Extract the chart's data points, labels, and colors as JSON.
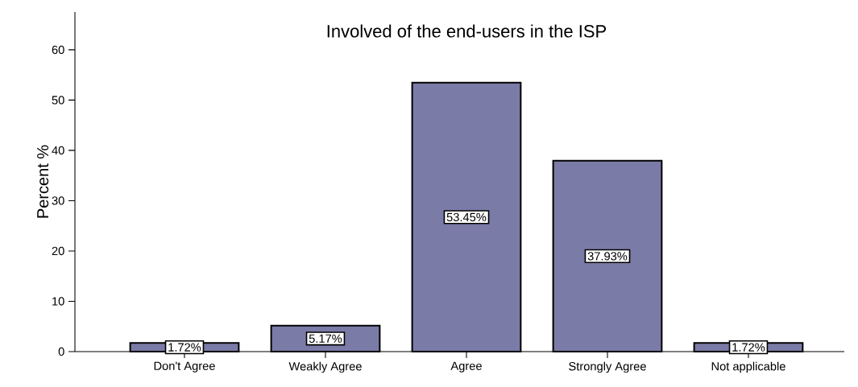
{
  "chart_data": {
    "type": "bar",
    "title": "Involved of the end-users in the ISP",
    "ylabel": "Percent %",
    "categories": [
      "Don't Agree",
      "Weakly Agree",
      "Agree",
      "Strongly Agree",
      "Not applicable"
    ],
    "values": [
      1.72,
      5.17,
      53.45,
      37.93,
      1.72
    ],
    "value_labels": [
      "1.72%",
      "5.17%",
      "53.45%",
      "37.93%",
      "1.72%"
    ],
    "color": "#7b7ba8",
    "ylim": [
      0,
      67.5
    ],
    "yticks": [
      0,
      10,
      20,
      30,
      40,
      50,
      60
    ]
  }
}
